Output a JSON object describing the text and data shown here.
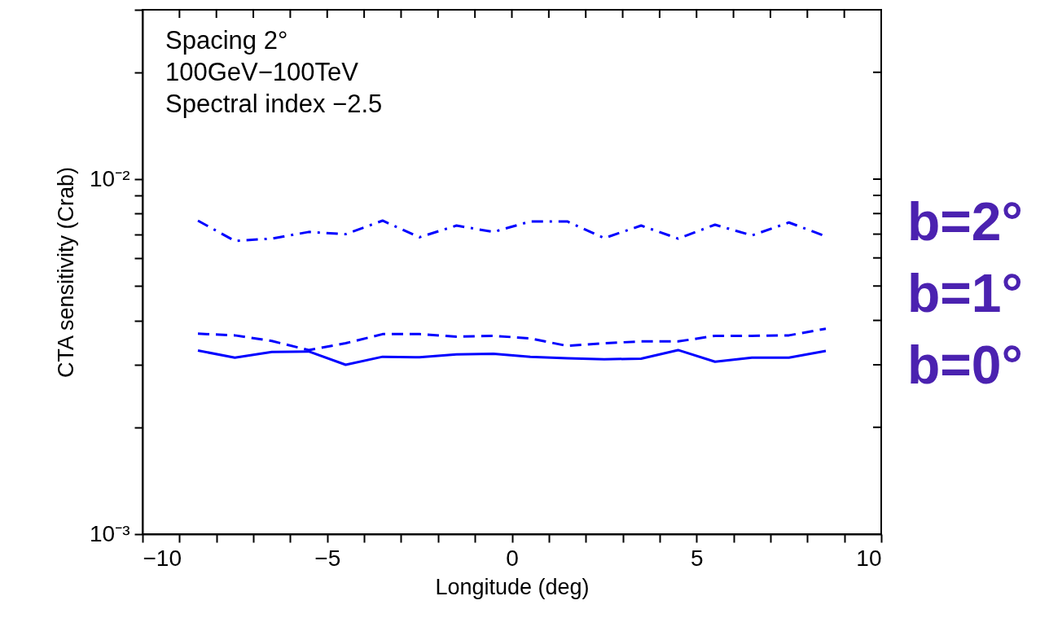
{
  "chart_data": {
    "type": "line",
    "xlabel": "Longitude (deg)",
    "ylabel": "CTA sensitivity (Crab)",
    "annotations": [
      "Spacing 2°",
      "100GeV−100TeV",
      "Spectral index −2.5"
    ],
    "x": [
      -8.5,
      -7.5,
      -6.5,
      -5.5,
      -4.5,
      -3.5,
      -2.5,
      -1.5,
      -0.5,
      0.5,
      1.5,
      2.5,
      3.5,
      4.5,
      5.5,
      6.5,
      7.5,
      8.5
    ],
    "series": [
      {
        "name": "b=2°",
        "color": "#0000ff",
        "line_style": "dashdot",
        "values": [
          0.00764,
          0.0067,
          0.0068,
          0.0071,
          0.007,
          0.00764,
          0.00686,
          0.0074,
          0.0071,
          0.0076,
          0.0076,
          0.00682,
          0.0074,
          0.0068,
          0.00744,
          0.00694,
          0.00755,
          0.0069
        ]
      },
      {
        "name": "b=1°",
        "color": "#0000ff",
        "line_style": "dashed",
        "values": [
          0.00367,
          0.00363,
          0.0035,
          0.0033,
          0.00345,
          0.00366,
          0.00366,
          0.0036,
          0.00362,
          0.00356,
          0.00339,
          0.00345,
          0.00349,
          0.00349,
          0.00362,
          0.00362,
          0.00363,
          0.00379
        ]
      },
      {
        "name": "b=0°",
        "color": "#0000ff",
        "line_style": "solid",
        "values": [
          0.00329,
          0.00314,
          0.00326,
          0.00327,
          0.003,
          0.00316,
          0.00315,
          0.00321,
          0.00322,
          0.00316,
          0.00313,
          0.00311,
          0.00312,
          0.0033,
          0.00306,
          0.00314,
          0.00314,
          0.00328
        ]
      }
    ],
    "log": "y",
    "grid": false,
    "legend": false,
    "xlim": [
      -10,
      10
    ],
    "xticks": [
      -10,
      {
        "value": -9,
        "label": null
      },
      {
        "value": -8,
        "label": null
      },
      {
        "value": -7,
        "label": null
      },
      {
        "value": -6,
        "label": null
      },
      -5,
      {
        "value": -4,
        "label": null
      },
      {
        "value": -3,
        "label": null
      },
      {
        "value": -2,
        "label": null
      },
      {
        "value": -1,
        "label": null
      },
      0,
      {
        "value": 1,
        "label": null
      },
      {
        "value": 2,
        "label": null
      },
      {
        "value": 3,
        "label": null
      },
      {
        "value": 4,
        "label": null
      },
      5,
      {
        "value": 6,
        "label": null
      },
      {
        "value": 7,
        "label": null
      },
      {
        "value": 8,
        "label": null
      },
      {
        "value": 9,
        "label": null
      },
      10
    ],
    "ylim": [
      0.001,
      0.03
    ],
    "yticks": [
      {
        "value": 0.001,
        "label": "10⁻³"
      },
      {
        "value": 0.002,
        "label": null
      },
      {
        "value": 0.003,
        "label": null
      },
      {
        "value": 0.004,
        "label": null
      },
      {
        "value": 0.005,
        "label": null
      },
      {
        "value": 0.006,
        "label": null
      },
      {
        "value": 0.007,
        "label": null
      },
      {
        "value": 0.008,
        "label": null
      },
      {
        "value": 0.009,
        "label": null
      },
      {
        "value": 0.01,
        "label": "10⁻²"
      },
      {
        "value": 0.02,
        "label": null
      },
      {
        "value": 0.03,
        "label": null
      }
    ]
  }
}
